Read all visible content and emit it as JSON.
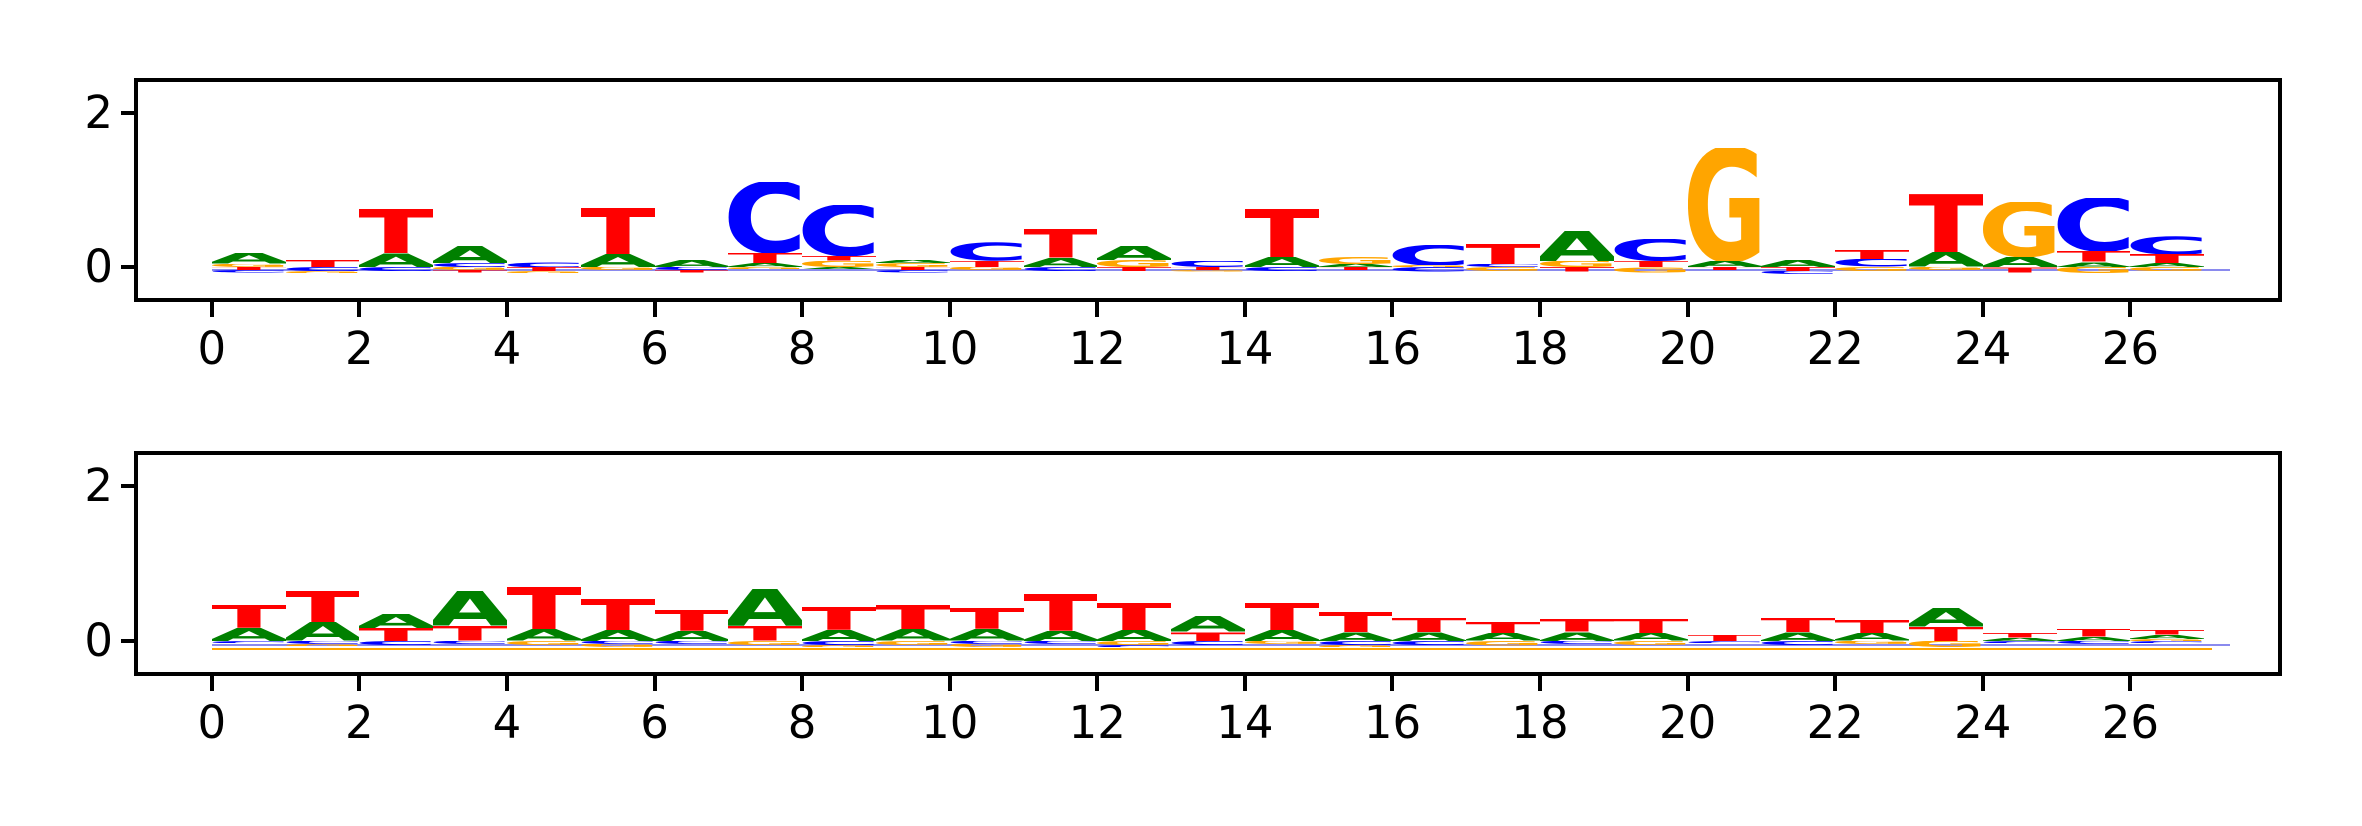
{
  "figure": {
    "background": "#ffffff",
    "n_panels": 2,
    "letter_colors": {
      "A": "#008000",
      "C": "#0000ff",
      "G": "#ffa500",
      "T": "#ff0000"
    },
    "spine_color": "#000000",
    "tick_color": "#000000"
  },
  "chart_data": [
    {
      "type": "sequence_logo",
      "panel": "top",
      "title": "",
      "xlabel": "",
      "ylabel": "",
      "xlim": [
        -1,
        28
      ],
      "ylim": [
        -0.4,
        2.4
      ],
      "xticks": [
        0,
        2,
        4,
        6,
        8,
        10,
        12,
        14,
        16,
        18,
        20,
        22,
        24,
        26
      ],
      "xtick_labels": [
        "0",
        "2",
        "4",
        "6",
        "8",
        "10",
        "12",
        "14",
        "16",
        "18",
        "20",
        "22",
        "24",
        "26"
      ],
      "yticks": [
        0,
        2
      ],
      "ytick_labels": [
        "0",
        "2"
      ],
      "grid": false,
      "legend": "none",
      "baseline_lines": [
        {
          "color": "#8a8aee",
          "y": -0.03,
          "x0": 0,
          "x1": 27.35,
          "thickness": 2
        }
      ],
      "positions": [
        {
          "pos": 0,
          "above": [
            [
              "G",
              0.04
            ],
            [
              "A",
              0.14
            ]
          ],
          "below": [
            [
              "T",
              0.04
            ],
            [
              "C",
              0.03
            ]
          ]
        },
        {
          "pos": 1,
          "above": [
            [
              "T",
              0.09
            ]
          ],
          "below": [
            [
              "C",
              0.05
            ],
            [
              "G",
              0.03
            ]
          ]
        },
        {
          "pos": 2,
          "above": [
            [
              "A",
              0.18
            ],
            [
              "T",
              0.57
            ]
          ],
          "below": [
            [
              "C",
              0.05
            ]
          ]
        },
        {
          "pos": 3,
          "above": [
            [
              "C",
              0.05
            ],
            [
              "A",
              0.23
            ]
          ],
          "below": [
            [
              "G",
              0.04
            ],
            [
              "T",
              0.03
            ]
          ]
        },
        {
          "pos": 4,
          "above": [
            [
              "C",
              0.07
            ]
          ],
          "below": [
            [
              "T",
              0.05
            ],
            [
              "G",
              0.03
            ]
          ]
        },
        {
          "pos": 5,
          "above": [
            [
              "A",
              0.17
            ],
            [
              "T",
              0.6
            ]
          ],
          "below": [
            [
              "G",
              0.04
            ]
          ]
        },
        {
          "pos": 6,
          "above": [
            [
              "A",
              0.09
            ]
          ],
          "below": [
            [
              "C",
              0.04
            ],
            [
              "T",
              0.03
            ]
          ]
        },
        {
          "pos": 7,
          "above": [
            [
              "A",
              0.05
            ],
            [
              "T",
              0.13
            ],
            [
              "C",
              0.92
            ]
          ],
          "below": [
            [
              "G",
              0.03
            ]
          ]
        },
        {
          "pos": 8,
          "above": [
            [
              "G",
              0.08
            ],
            [
              "T",
              0.06
            ],
            [
              "C",
              0.66
            ]
          ],
          "below": [
            [
              "A",
              0.03
            ]
          ]
        },
        {
          "pos": 9,
          "above": [
            [
              "G",
              0.05
            ],
            [
              "A",
              0.04
            ]
          ],
          "below": [
            [
              "T",
              0.04
            ],
            [
              "C",
              0.03
            ]
          ]
        },
        {
          "pos": 10,
          "above": [
            [
              "T",
              0.08
            ],
            [
              "C",
              0.24
            ]
          ],
          "below": [
            [
              "G",
              0.04
            ]
          ]
        },
        {
          "pos": 11,
          "above": [
            [
              "A",
              0.12
            ],
            [
              "T",
              0.37
            ]
          ],
          "below": [
            [
              "C",
              0.05
            ]
          ]
        },
        {
          "pos": 12,
          "above": [
            [
              "G",
              0.09
            ],
            [
              "A",
              0.19
            ]
          ],
          "below": [
            [
              "T",
              0.05
            ]
          ]
        },
        {
          "pos": 13,
          "above": [
            [
              "C",
              0.08
            ]
          ],
          "below": [
            [
              "T",
              0.04
            ],
            [
              "G",
              0.02
            ]
          ]
        },
        {
          "pos": 14,
          "above": [
            [
              "A",
              0.13
            ],
            [
              "T",
              0.63
            ]
          ],
          "below": [
            [
              "C",
              0.05
            ]
          ]
        },
        {
          "pos": 15,
          "above": [
            [
              "A",
              0.04
            ],
            [
              "G",
              0.09
            ]
          ],
          "below": [
            [
              "T",
              0.04
            ]
          ]
        },
        {
          "pos": 16,
          "above": [
            [
              "G",
              0.03
            ],
            [
              "C",
              0.26
            ]
          ],
          "below": [
            [
              "C",
              0.06
            ]
          ]
        },
        {
          "pos": 17,
          "above": [
            [
              "C",
              0.04
            ],
            [
              "T",
              0.26
            ]
          ],
          "below": [
            [
              "G",
              0.05
            ]
          ]
        },
        {
          "pos": 18,
          "above": [
            [
              "G",
              0.08
            ],
            [
              "A",
              0.39
            ]
          ],
          "below": [
            [
              "T",
              0.06
            ]
          ]
        },
        {
          "pos": 19,
          "above": [
            [
              "T",
              0.08
            ],
            [
              "C",
              0.28
            ]
          ],
          "below": [
            [
              "G",
              0.07
            ]
          ]
        },
        {
          "pos": 20,
          "above": [
            [
              "A",
              0.08
            ],
            [
              "G",
              1.47
            ]
          ],
          "below": [
            [
              "T",
              0.04
            ]
          ]
        },
        {
          "pos": 21,
          "above": [
            [
              "A",
              0.09
            ]
          ],
          "below": [
            [
              "T",
              0.05
            ],
            [
              "C",
              0.04
            ]
          ]
        },
        {
          "pos": 22,
          "above": [
            [
              "C",
              0.1
            ],
            [
              "T",
              0.12
            ]
          ],
          "below": [
            [
              "G",
              0.05
            ]
          ]
        },
        {
          "pos": 23,
          "above": [
            [
              "A",
              0.19
            ],
            [
              "T",
              0.76
            ]
          ],
          "below": [
            [
              "G",
              0.04
            ]
          ]
        },
        {
          "pos": 24,
          "above": [
            [
              "A",
              0.13
            ],
            [
              "G",
              0.71
            ]
          ],
          "below": [
            [
              "T",
              0.07
            ]
          ]
        },
        {
          "pos": 25,
          "above": [
            [
              "A",
              0.07
            ],
            [
              "T",
              0.14
            ],
            [
              "C",
              0.69
            ]
          ],
          "below": [
            [
              "G",
              0.08
            ]
          ]
        },
        {
          "pos": 26,
          "above": [
            [
              "A",
              0.05
            ],
            [
              "T",
              0.12
            ],
            [
              "C",
              0.24
            ]
          ],
          "below": [
            [
              "G",
              0.05
            ]
          ]
        }
      ]
    },
    {
      "type": "sequence_logo",
      "panel": "bottom",
      "title": "",
      "xlabel": "",
      "ylabel": "",
      "xlim": [
        -1,
        28
      ],
      "ylim": [
        -0.4,
        2.4
      ],
      "xticks": [
        0,
        2,
        4,
        6,
        8,
        10,
        12,
        14,
        16,
        18,
        20,
        22,
        24,
        26
      ],
      "xtick_labels": [
        "0",
        "2",
        "4",
        "6",
        "8",
        "10",
        "12",
        "14",
        "16",
        "18",
        "20",
        "22",
        "24",
        "26"
      ],
      "yticks": [
        0,
        2
      ],
      "ytick_labels": [
        "0",
        "2"
      ],
      "grid": false,
      "legend": "none",
      "baseline_lines": [
        {
          "color": "#8a8aee",
          "y": -0.035,
          "x0": 0,
          "x1": 27.35,
          "thickness": 2
        },
        {
          "color": "#ffa500",
          "y": -0.085,
          "x0": 0,
          "x1": 27.1,
          "thickness": 2
        }
      ],
      "positions": [
        {
          "pos": 0,
          "above": [
            [
              "A",
              0.17
            ],
            [
              "T",
              0.3
            ]
          ],
          "below": [
            [
              "C",
              0.03
            ]
          ]
        },
        {
          "pos": 1,
          "above": [
            [
              "A",
              0.24
            ],
            [
              "T",
              0.41
            ]
          ],
          "below": [
            [
              "C",
              0.04
            ],
            [
              "G",
              0.03
            ]
          ]
        },
        {
          "pos": 2,
          "above": [
            [
              "T",
              0.17
            ],
            [
              "A",
              0.18
            ]
          ],
          "below": [
            [
              "C",
              0.05
            ]
          ]
        },
        {
          "pos": 3,
          "above": [
            [
              "T",
              0.19
            ],
            [
              "A",
              0.45
            ]
          ],
          "below": [
            [
              "C",
              0.04
            ]
          ]
        },
        {
          "pos": 4,
          "above": [
            [
              "A",
              0.15
            ],
            [
              "T",
              0.55
            ]
          ],
          "below": [
            [
              "G",
              0.05
            ]
          ]
        },
        {
          "pos": 5,
          "above": [
            [
              "A",
              0.14
            ],
            [
              "T",
              0.4
            ]
          ],
          "below": [
            [
              "C",
              0.04
            ],
            [
              "G",
              0.04
            ]
          ]
        },
        {
          "pos": 6,
          "above": [
            [
              "A",
              0.13
            ],
            [
              "T",
              0.27
            ]
          ],
          "below": [
            [
              "C",
              0.04
            ]
          ]
        },
        {
          "pos": 7,
          "above": [
            [
              "T",
              0.19
            ],
            [
              "A",
              0.48
            ]
          ],
          "below": [
            [
              "G",
              0.05
            ]
          ]
        },
        {
          "pos": 8,
          "above": [
            [
              "A",
              0.14
            ],
            [
              "T",
              0.3
            ]
          ],
          "below": [
            [
              "C",
              0.05
            ],
            [
              "G",
              0.03
            ]
          ]
        },
        {
          "pos": 9,
          "above": [
            [
              "A",
              0.15
            ],
            [
              "T",
              0.32
            ]
          ],
          "below": [
            [
              "G",
              0.05
            ]
          ]
        },
        {
          "pos": 10,
          "above": [
            [
              "A",
              0.15
            ],
            [
              "T",
              0.27
            ]
          ],
          "below": [
            [
              "C",
              0.04
            ],
            [
              "G",
              0.04
            ]
          ]
        },
        {
          "pos": 11,
          "above": [
            [
              "A",
              0.13
            ],
            [
              "T",
              0.48
            ]
          ],
          "below": [
            [
              "C",
              0.04
            ]
          ]
        },
        {
          "pos": 12,
          "above": [
            [
              "A",
              0.14
            ],
            [
              "T",
              0.35
            ]
          ],
          "below": [
            [
              "G",
              0.05
            ],
            [
              "C",
              0.03
            ]
          ]
        },
        {
          "pos": 13,
          "above": [
            [
              "T",
              0.12
            ],
            [
              "A",
              0.2
            ]
          ],
          "below": [
            [
              "C",
              0.05
            ]
          ]
        },
        {
          "pos": 14,
          "above": [
            [
              "A",
              0.14
            ],
            [
              "T",
              0.35
            ]
          ],
          "below": [
            [
              "G",
              0.04
            ]
          ]
        },
        {
          "pos": 15,
          "above": [
            [
              "A",
              0.12
            ],
            [
              "T",
              0.26
            ]
          ],
          "below": [
            [
              "C",
              0.05
            ],
            [
              "G",
              0.03
            ]
          ]
        },
        {
          "pos": 16,
          "above": [
            [
              "A",
              0.12
            ],
            [
              "T",
              0.18
            ]
          ],
          "below": [
            [
              "C",
              0.05
            ]
          ]
        },
        {
          "pos": 17,
          "above": [
            [
              "A",
              0.1
            ],
            [
              "T",
              0.15
            ]
          ],
          "below": [
            [
              "G",
              0.06
            ]
          ]
        },
        {
          "pos": 18,
          "above": [
            [
              "A",
              0.12
            ],
            [
              "T",
              0.16
            ]
          ],
          "below": [
            [
              "C",
              0.04
            ]
          ]
        },
        {
          "pos": 19,
          "above": [
            [
              "A",
              0.1
            ],
            [
              "T",
              0.18
            ]
          ],
          "below": [
            [
              "G",
              0.05
            ]
          ]
        },
        {
          "pos": 20,
          "above": [
            [
              "T",
              0.08
            ]
          ],
          "below": [
            [
              "C",
              0.03
            ]
          ]
        },
        {
          "pos": 21,
          "above": [
            [
              "A",
              0.12
            ],
            [
              "T",
              0.18
            ]
          ],
          "below": [
            [
              "C",
              0.05
            ]
          ]
        },
        {
          "pos": 22,
          "above": [
            [
              "A",
              0.1
            ],
            [
              "T",
              0.17
            ]
          ],
          "below": [
            [
              "G",
              0.04
            ]
          ]
        },
        {
          "pos": 23,
          "above": [
            [
              "T",
              0.18
            ],
            [
              "A",
              0.24
            ]
          ],
          "below": [
            [
              "G",
              0.08
            ]
          ]
        },
        {
          "pos": 24,
          "above": [
            [
              "A",
              0.04
            ],
            [
              "T",
              0.06
            ]
          ],
          "below": [
            [
              "C",
              0.03
            ]
          ]
        },
        {
          "pos": 25,
          "above": [
            [
              "A",
              0.05
            ],
            [
              "T",
              0.1
            ]
          ],
          "below": [
            [
              "C",
              0.04
            ]
          ]
        },
        {
          "pos": 26,
          "above": [
            [
              "G",
              0.03
            ],
            [
              "A",
              0.05
            ],
            [
              "T",
              0.06
            ]
          ],
          "below": [
            [
              "C",
              0.03
            ]
          ]
        }
      ]
    }
  ]
}
